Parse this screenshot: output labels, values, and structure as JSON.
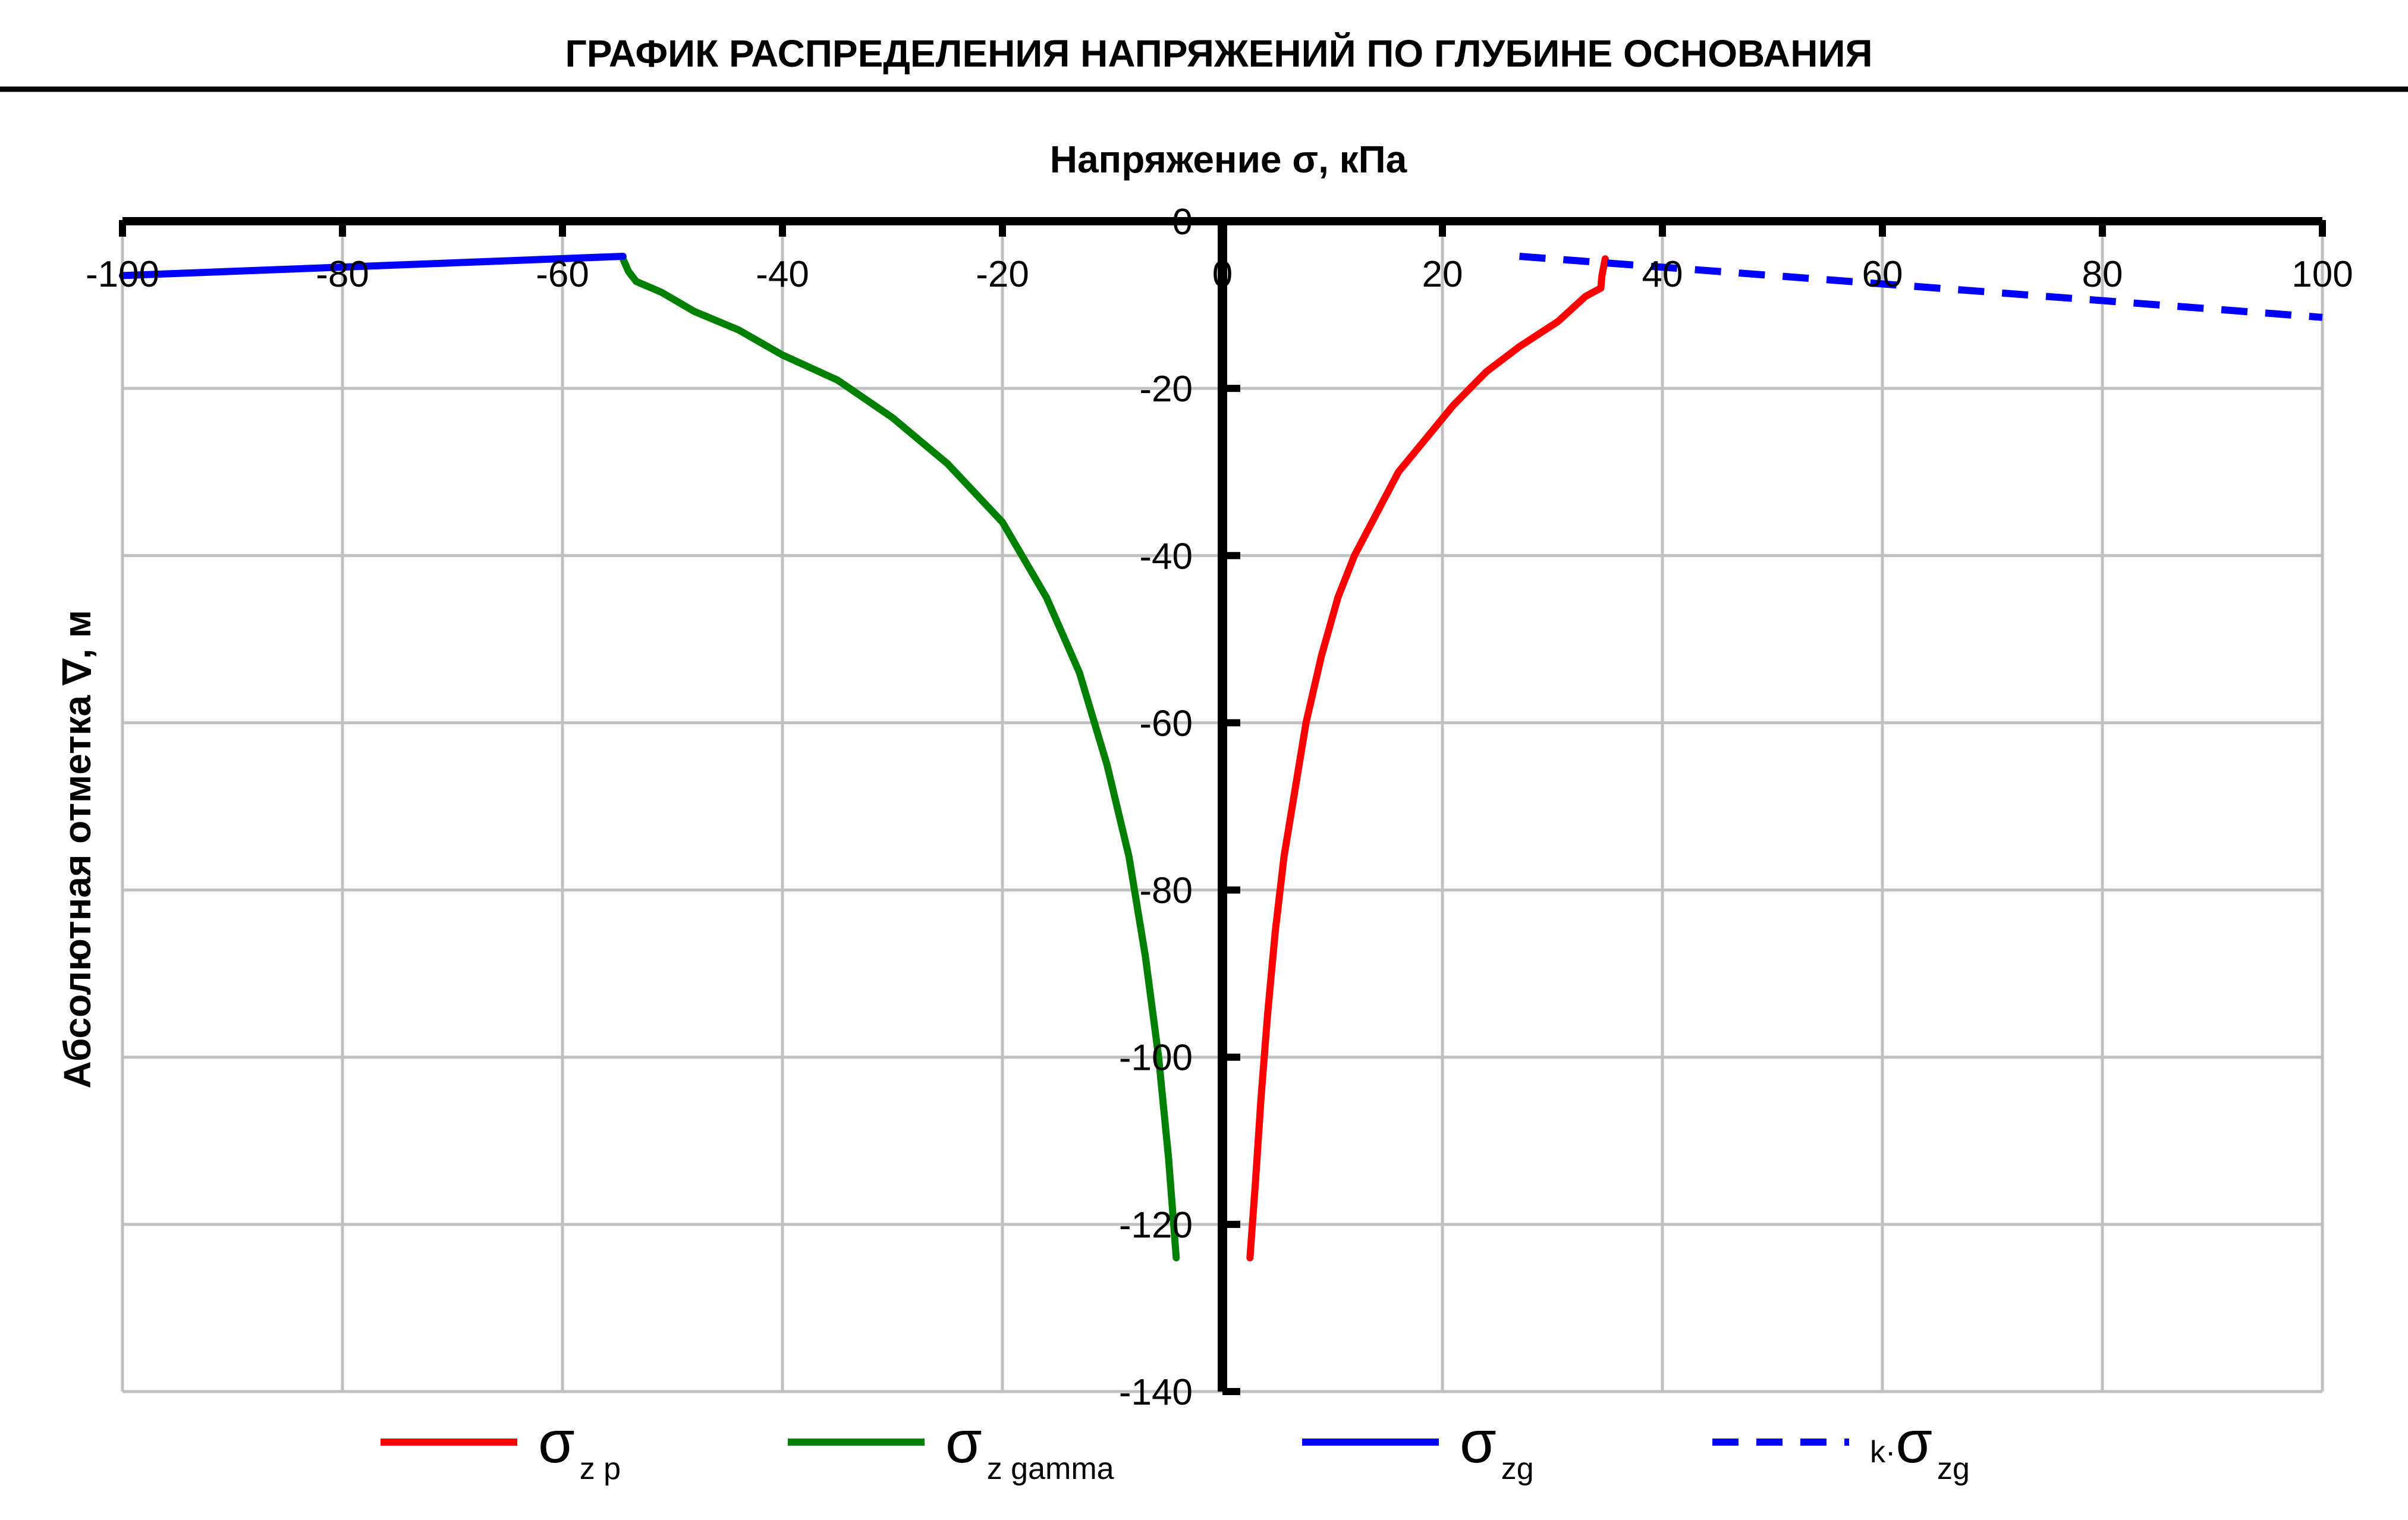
{
  "chart_data": {
    "type": "line",
    "title": "ГРАФИК РАСПРЕДЕЛЕНИЯ НАПРЯЖЕНИЙ ПО ГЛУБИНЕ ОСНОВАНИЯ",
    "xlabel": "Напряжение σ, кПа",
    "ylabel": "Абсолютная отметка ∇, м",
    "xlim": [
      -100,
      100
    ],
    "ylim": [
      -140,
      0
    ],
    "x_ticks": [
      -100,
      -80,
      -60,
      -40,
      -20,
      0,
      20,
      40,
      60,
      80,
      100
    ],
    "y_ticks": [
      0,
      -20,
      -40,
      -60,
      -80,
      -100,
      -120,
      -140
    ],
    "x_tick_labels": [
      "-100",
      "-80",
      "-60",
      "-40",
      "-20",
      "0",
      "20",
      "40",
      "60",
      "80",
      "100"
    ],
    "y_tick_labels": [
      "0",
      "-20",
      "-40",
      "-60",
      "-80",
      "-100",
      "-120",
      "-140"
    ],
    "grid": true,
    "legend_position": "bottom",
    "series": [
      {
        "name": "σzp",
        "legend": {
          "symbol": "σ",
          "sub": "z p",
          "prefix": ""
        },
        "color": "#ff0000",
        "dash": "solid",
        "points": [
          [
            34.8,
            -4.5
          ],
          [
            34.5,
            -6.5
          ],
          [
            34.4,
            -8
          ],
          [
            33,
            -9
          ],
          [
            30.5,
            -12
          ],
          [
            27,
            -15
          ],
          [
            24,
            -18
          ],
          [
            21,
            -22
          ],
          [
            18.5,
            -26
          ],
          [
            16,
            -30
          ],
          [
            14,
            -35
          ],
          [
            12,
            -40
          ],
          [
            10.5,
            -45
          ],
          [
            9,
            -52
          ],
          [
            7.6,
            -60
          ],
          [
            6.6,
            -68
          ],
          [
            5.6,
            -76
          ],
          [
            4.8,
            -85
          ],
          [
            4.1,
            -95
          ],
          [
            3.5,
            -105
          ],
          [
            3.0,
            -115
          ],
          [
            2.5,
            -124
          ]
        ]
      },
      {
        "name": "σz gamma",
        "legend": {
          "symbol": "σ",
          "sub": "z gamma",
          "prefix": ""
        },
        "color": "#008000",
        "dash": "solid",
        "points": [
          [
            -54.5,
            -4.5
          ],
          [
            -54,
            -6
          ],
          [
            -53.3,
            -7.2
          ],
          [
            -51,
            -8.5
          ],
          [
            -48,
            -10.8
          ],
          [
            -44,
            -13
          ],
          [
            -40,
            -16
          ],
          [
            -35,
            -19
          ],
          [
            -30,
            -23.5
          ],
          [
            -25,
            -29
          ],
          [
            -20,
            -36
          ],
          [
            -16,
            -45
          ],
          [
            -13,
            -54
          ],
          [
            -10.5,
            -65
          ],
          [
            -8.5,
            -76
          ],
          [
            -7,
            -88
          ],
          [
            -5.8,
            -100
          ],
          [
            -4.9,
            -112
          ],
          [
            -4.2,
            -124
          ]
        ]
      },
      {
        "name": "σzg",
        "legend": {
          "symbol": "σ",
          "sub": "zg",
          "prefix": ""
        },
        "color": "#0000ff",
        "dash": "solid",
        "points": [
          [
            -100,
            -6.5
          ],
          [
            -54.5,
            -4.2
          ]
        ]
      },
      {
        "name": "k·σzg",
        "legend": {
          "symbol": "σ",
          "sub": "zg",
          "prefix": "k·"
        },
        "color": "#0000ff",
        "dash": "dashed",
        "points": [
          [
            27,
            -4.2
          ],
          [
            100,
            -11.5
          ]
        ]
      }
    ]
  }
}
